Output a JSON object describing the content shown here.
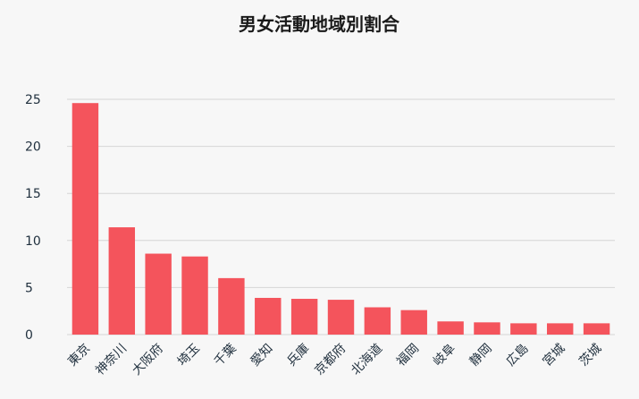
{
  "chart_data": {
    "type": "bar",
    "title": "男女活動地域別割合",
    "xlabel": "",
    "ylabel": "",
    "ylim": [
      0,
      25
    ],
    "yticks": [
      0,
      5,
      10,
      15,
      20,
      25
    ],
    "grid": true,
    "categories": [
      "東京",
      "神奈川",
      "大阪府",
      "埼玉",
      "千葉",
      "愛知",
      "兵庫",
      "京都府",
      "北海道",
      "福岡",
      "岐阜",
      "静岡",
      "広島",
      "宮城",
      "茨城"
    ],
    "values": [
      24.6,
      11.4,
      8.6,
      8.3,
      6.0,
      3.9,
      3.8,
      3.7,
      2.9,
      2.6,
      1.4,
      1.3,
      1.2,
      1.2,
      1.2
    ],
    "bar_color": "#f4545c"
  }
}
